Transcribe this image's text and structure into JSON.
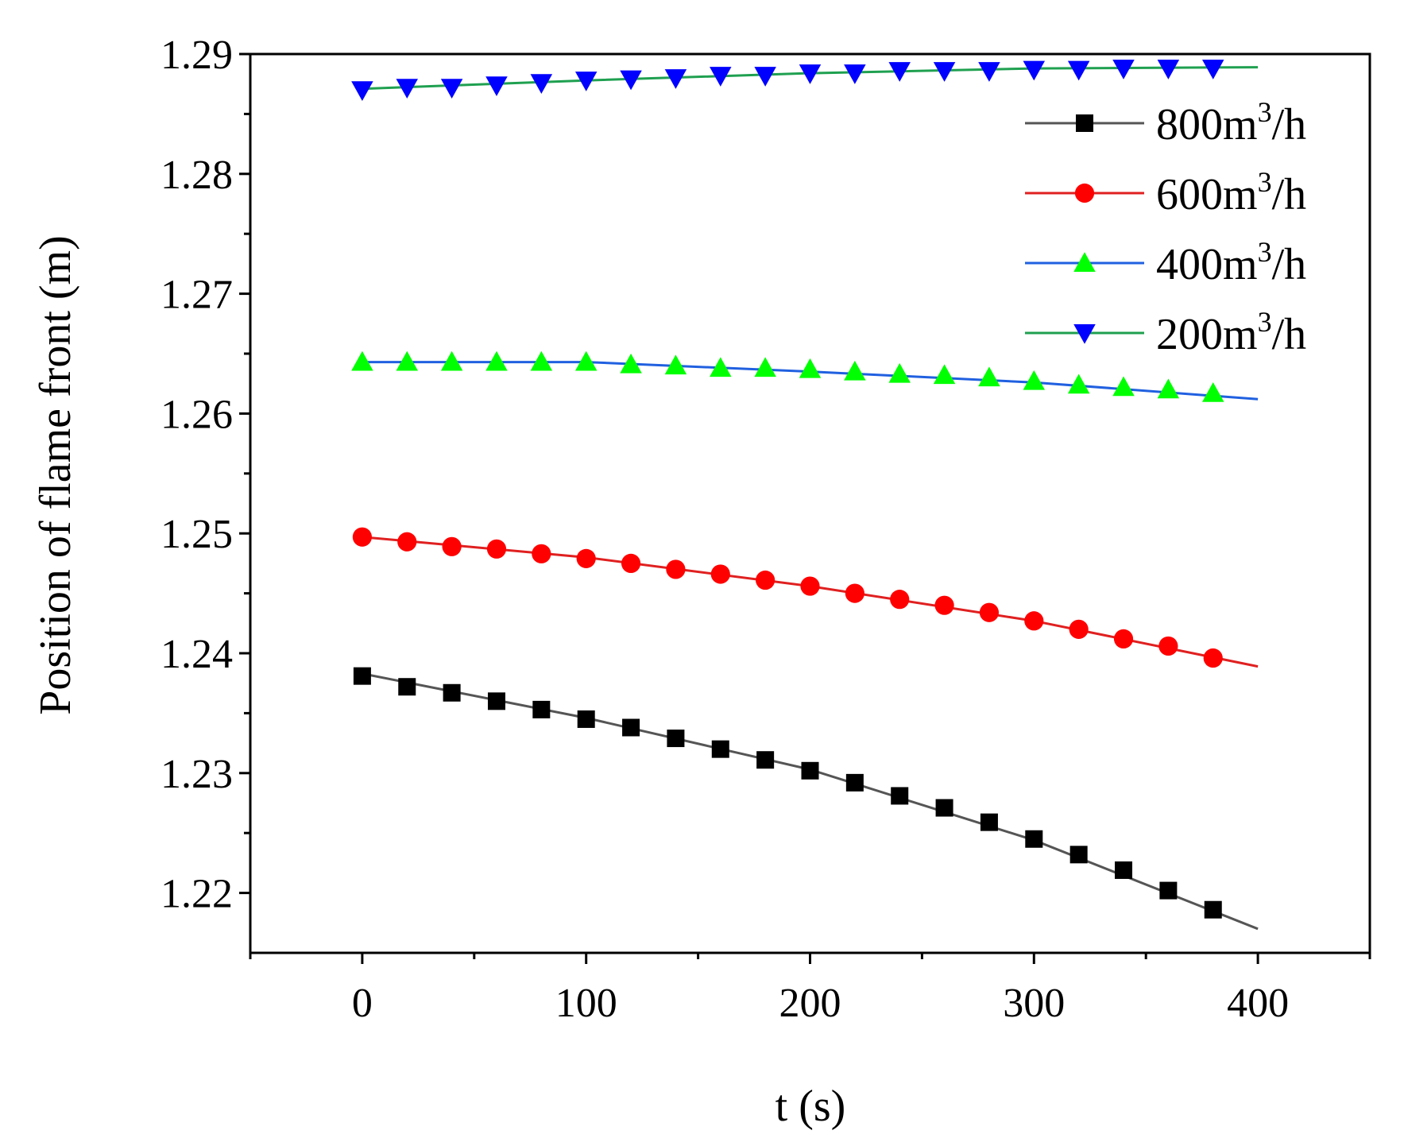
{
  "chart_data": {
    "type": "line",
    "title": "",
    "xlabel": "t (s)",
    "ylabel": "Position of flame front (m)",
    "xlim": [
      -50,
      450
    ],
    "ylim": [
      1.215,
      1.29
    ],
    "xticks": [
      0,
      100,
      200,
      300,
      400
    ],
    "xtick_labels": [
      "0",
      "100",
      "200",
      "300",
      "400"
    ],
    "yticks": [
      1.22,
      1.23,
      1.24,
      1.25,
      1.26,
      1.27,
      1.28,
      1.29
    ],
    "ytick_labels": [
      "1.22",
      "1.23",
      "1.24",
      "1.25",
      "1.26",
      "1.27",
      "1.28",
      "1.29"
    ],
    "grid": false,
    "legend_position": "top-right",
    "marker_x": [
      0,
      20,
      40,
      60,
      80,
      100,
      120,
      140,
      160,
      180,
      200,
      220,
      240,
      260,
      280,
      300,
      320,
      340,
      360,
      380
    ],
    "series": [
      {
        "name": "800m3/h",
        "legend_base": "800m",
        "legend_sup": "3",
        "legend_unit": "/h",
        "line_color": "#555555",
        "marker_color": "#000000",
        "marker": "square",
        "line_x": [
          0,
          100,
          200,
          300,
          400
        ],
        "line_y": [
          1.2383,
          1.2346,
          1.2303,
          1.2244,
          1.217
        ],
        "marker_y": [
          1.2381,
          1.2372,
          1.2367,
          1.236,
          1.2353,
          1.2345,
          1.2338,
          1.2329,
          1.232,
          1.2311,
          1.2302,
          1.2292,
          1.2281,
          1.2271,
          1.2259,
          1.2245,
          1.2232,
          1.2219,
          1.2202,
          1.2186
        ]
      },
      {
        "name": "600m3/h",
        "legend_base": "600m",
        "legend_sup": "3",
        "legend_unit": "/h",
        "line_color": "#e02020",
        "marker_color": "#ff0000",
        "marker": "circle",
        "line_x": [
          0,
          100,
          200,
          300,
          400
        ],
        "line_y": [
          1.2497,
          1.248,
          1.2456,
          1.2427,
          1.2389
        ],
        "marker_y": [
          1.2497,
          1.2493,
          1.2489,
          1.2487,
          1.2483,
          1.2479,
          1.2475,
          1.247,
          1.2466,
          1.2461,
          1.2456,
          1.245,
          1.2445,
          1.244,
          1.2434,
          1.2427,
          1.242,
          1.2412,
          1.2406,
          1.2396
        ]
      },
      {
        "name": "400m3/h",
        "legend_base": "400m",
        "legend_sup": "3",
        "legend_unit": "/h",
        "line_color": "#2060e0",
        "marker_color": "#00ff00",
        "marker": "triangle-up",
        "line_x": [
          0,
          100,
          200,
          300,
          400
        ],
        "line_y": [
          1.2643,
          1.2643,
          1.2635,
          1.2626,
          1.2612
        ],
        "marker_y": [
          1.2643,
          1.2643,
          1.2643,
          1.2643,
          1.2643,
          1.2643,
          1.2641,
          1.264,
          1.2638,
          1.2638,
          1.2637,
          1.2635,
          1.2633,
          1.2632,
          1.263,
          1.2627,
          1.2624,
          1.2622,
          1.262,
          1.2617
        ]
      },
      {
        "name": "200m3/h",
        "legend_base": "200m",
        "legend_sup": "3",
        "legend_unit": "/h",
        "line_color": "#1fa050",
        "marker_color": "#0000ff",
        "marker": "triangle-down",
        "line_x": [
          0,
          100,
          200,
          300,
          400
        ],
        "line_y": [
          1.2871,
          1.2878,
          1.2884,
          1.2888,
          1.2889
        ],
        "marker_y": [
          1.287,
          1.2872,
          1.2872,
          1.2874,
          1.2876,
          1.2878,
          1.2879,
          1.288,
          1.2882,
          1.2882,
          1.2884,
          1.2884,
          1.2886,
          1.2886,
          1.2886,
          1.2887,
          1.2887,
          1.2888,
          1.2888,
          1.2888
        ]
      }
    ]
  }
}
